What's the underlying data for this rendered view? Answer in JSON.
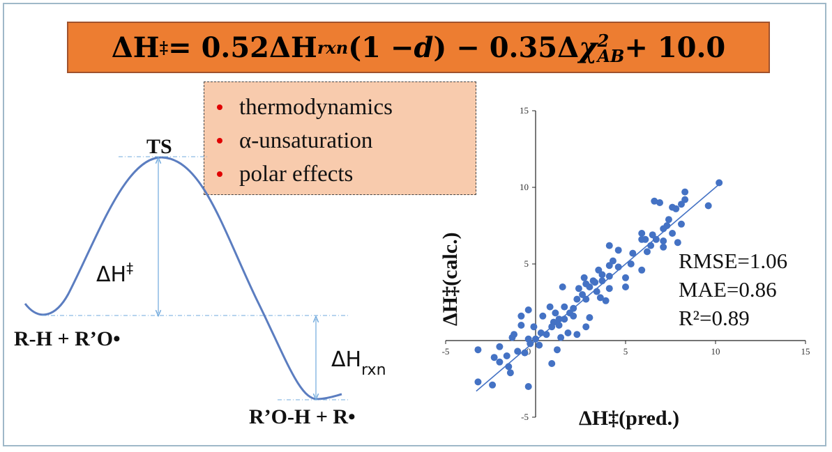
{
  "equation": {
    "text": "ΔH‡ = 0.52ΔHrxn(1 − d) − 0.35Δχ²AB + 10.0",
    "lhs": "ΔH",
    "lhs_sup": "‡",
    "part1": " = 0.52ΔH",
    "sub_rxn": "rxn",
    "part2": "(1 − ",
    "var_d": "d",
    "part3": ") − 0.35Δ",
    "var_chi": "χ",
    "sup_2": "2",
    "sub_ab": "AB",
    "part4": " + 10.0"
  },
  "factors": {
    "items": [
      {
        "label": "thermodynamics"
      },
      {
        "label": "α-unsaturation"
      },
      {
        "label": "polar effects"
      }
    ],
    "bullet_color": "#e00000",
    "box_color": "#f8cbad",
    "banner_color": "#ed7d31"
  },
  "energy_diagram": {
    "ts_label": "TS",
    "reactants_label": "R-H + R’O•",
    "products_label": "R’O-H + R•",
    "barrier_label": "ΔH",
    "barrier_sup": "‡",
    "reaction_label": "ΔH",
    "reaction_sub": "rxn",
    "curve_color": "#5b7dc0",
    "arrow_color": "#6fa8dc"
  },
  "chart_data": {
    "type": "scatter",
    "xlabel": "ΔH‡(pred.)",
    "ylabel": "ΔH‡(calc.)",
    "xlim": [
      -5,
      15
    ],
    "ylim": [
      -5,
      15
    ],
    "x_ticks": [
      "-5",
      "0",
      "5",
      "10",
      "15"
    ],
    "y_ticks": [
      "-5",
      "5",
      "10",
      "15"
    ],
    "origin_tick": "0",
    "point_color": "#4472c4",
    "fit_line": {
      "x": [
        -3.3,
        10.2
      ],
      "y": [
        -3.3,
        10.2
      ]
    },
    "stats": [
      "RMSE=1.06",
      "MAE=0.86",
      "R²=0.89"
    ],
    "points": [
      {
        "x": 10.2,
        "y": 10.3
      },
      {
        "x": 9.6,
        "y": 8.8
      },
      {
        "x": 8.3,
        "y": 9.7
      },
      {
        "x": 8.3,
        "y": 9.2
      },
      {
        "x": 8.1,
        "y": 8.9
      },
      {
        "x": 7.8,
        "y": 8.6
      },
      {
        "x": 7.6,
        "y": 8.7
      },
      {
        "x": 7.3,
        "y": 7.5
      },
      {
        "x": 7.4,
        "y": 7.9
      },
      {
        "x": 8.1,
        "y": 7.6
      },
      {
        "x": 7.1,
        "y": 7.3
      },
      {
        "x": 7.6,
        "y": 7.0
      },
      {
        "x": 6.6,
        "y": 9.1
      },
      {
        "x": 6.9,
        "y": 9.0
      },
      {
        "x": 6.7,
        "y": 6.6
      },
      {
        "x": 6.5,
        "y": 6.9
      },
      {
        "x": 6.4,
        "y": 6.2
      },
      {
        "x": 6.1,
        "y": 6.6
      },
      {
        "x": 5.9,
        "y": 7.0
      },
      {
        "x": 5.9,
        "y": 6.6
      },
      {
        "x": 5.4,
        "y": 5.7
      },
      {
        "x": 5.3,
        "y": 5.0
      },
      {
        "x": 5.9,
        "y": 4.6
      },
      {
        "x": 7.1,
        "y": 6.5
      },
      {
        "x": 7.9,
        "y": 6.4
      },
      {
        "x": 4.6,
        "y": 5.9
      },
      {
        "x": 4.1,
        "y": 6.2
      },
      {
        "x": 4.3,
        "y": 5.2
      },
      {
        "x": 4.6,
        "y": 4.8
      },
      {
        "x": 4.1,
        "y": 4.2
      },
      {
        "x": 3.7,
        "y": 4.3
      },
      {
        "x": 3.7,
        "y": 3.9
      },
      {
        "x": 3.5,
        "y": 4.6
      },
      {
        "x": 3.2,
        "y": 3.9
      },
      {
        "x": 3.0,
        "y": 3.5
      },
      {
        "x": 3.4,
        "y": 3.2
      },
      {
        "x": 2.7,
        "y": 4.1
      },
      {
        "x": 2.8,
        "y": 3.7
      },
      {
        "x": 2.6,
        "y": 3.0
      },
      {
        "x": 2.4,
        "y": 3.4
      },
      {
        "x": 2.3,
        "y": 2.7
      },
      {
        "x": 3.6,
        "y": 2.8
      },
      {
        "x": 3.9,
        "y": 2.6
      },
      {
        "x": 2.1,
        "y": 2.1
      },
      {
        "x": 1.9,
        "y": 1.8
      },
      {
        "x": 1.6,
        "y": 2.2
      },
      {
        "x": 1.6,
        "y": 1.4
      },
      {
        "x": 1.3,
        "y": 1.4
      },
      {
        "x": 1.1,
        "y": 1.8
      },
      {
        "x": 1.3,
        "y": 1.0
      },
      {
        "x": 0.9,
        "y": 0.9
      },
      {
        "x": 0.6,
        "y": 0.4
      },
      {
        "x": 0.3,
        "y": 0.5
      },
      {
        "x": 0.0,
        "y": 0.1
      },
      {
        "x": -0.3,
        "y": -0.2
      },
      {
        "x": 0.2,
        "y": -0.3
      },
      {
        "x": -0.4,
        "y": 0.1
      },
      {
        "x": -0.6,
        "y": -0.8
      },
      {
        "x": -0.8,
        "y": 1.0
      },
      {
        "x": -1.3,
        "y": 0.2
      },
      {
        "x": -1.2,
        "y": 0.4
      },
      {
        "x": -1.0,
        "y": -0.7
      },
      {
        "x": -1.6,
        "y": -1.0
      },
      {
        "x": -1.4,
        "y": -2.1
      },
      {
        "x": -2.0,
        "y": -1.4
      },
      {
        "x": -2.0,
        "y": -0.4
      },
      {
        "x": -2.3,
        "y": -1.1
      },
      {
        "x": -2.4,
        "y": -2.9
      },
      {
        "x": -3.2,
        "y": -0.6
      },
      {
        "x": -3.2,
        "y": -2.7
      },
      {
        "x": -0.4,
        "y": -3.0
      },
      {
        "x": -1.5,
        "y": -1.7
      },
      {
        "x": 0.9,
        "y": -1.5
      },
      {
        "x": 1.2,
        "y": -0.6
      },
      {
        "x": 1.4,
        "y": 0.2
      },
      {
        "x": 1.8,
        "y": 0.5
      },
      {
        "x": 2.3,
        "y": 0.4
      },
      {
        "x": 2.8,
        "y": 0.9
      },
      {
        "x": 3.0,
        "y": 1.5
      },
      {
        "x": 0.4,
        "y": 1.6
      },
      {
        "x": 0.8,
        "y": 2.2
      },
      {
        "x": -0.8,
        "y": 1.6
      },
      {
        "x": -0.4,
        "y": 2.0
      },
      {
        "x": 1.5,
        "y": 3.5
      },
      {
        "x": 2.8,
        "y": 2.7
      },
      {
        "x": 4.1,
        "y": 3.4
      },
      {
        "x": 5.0,
        "y": 3.5
      },
      {
        "x": 5.0,
        "y": 4.1
      },
      {
        "x": 3.3,
        "y": 3.8
      },
      {
        "x": 4.1,
        "y": 4.9
      },
      {
        "x": 6.2,
        "y": 5.8
      },
      {
        "x": 7.1,
        "y": 6.1
      },
      {
        "x": -0.1,
        "y": 0.9
      },
      {
        "x": 1.0,
        "y": 1.2
      },
      {
        "x": 2.1,
        "y": 1.6
      }
    ]
  }
}
